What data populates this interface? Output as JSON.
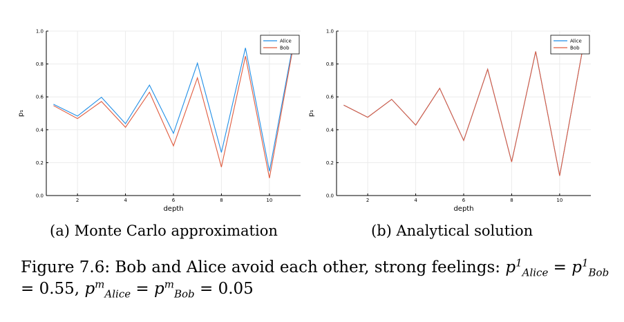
{
  "colors": {
    "alice": "#1f8ee6",
    "bob": "#e05b3e",
    "grid": "#ebebeb",
    "axis": "#000000"
  },
  "chart_data": [
    {
      "type": "line",
      "xlabel": "depth",
      "ylabel": "p₁",
      "xlim": [
        0.7,
        11.3
      ],
      "ylim": [
        0,
        1
      ],
      "xticks": [
        2,
        4,
        6,
        8,
        10
      ],
      "yticks": [
        0.0,
        0.2,
        0.4,
        0.6,
        0.8,
        1.0
      ],
      "ytick_labels": [
        "0.0",
        "0.2",
        "0.4",
        "0.6",
        "0.8",
        "1.0"
      ],
      "grid": true,
      "legend": "top-right",
      "x": [
        1,
        2,
        3,
        4,
        5,
        6,
        7,
        8,
        9,
        10,
        11
      ],
      "series": [
        {
          "name": "Alice",
          "values": [
            0.555,
            0.483,
            0.598,
            0.437,
            0.672,
            0.378,
            0.805,
            0.262,
            0.898,
            0.148,
            0.932
          ]
        },
        {
          "name": "Bob",
          "values": [
            0.547,
            0.468,
            0.572,
            0.415,
            0.628,
            0.302,
            0.716,
            0.173,
            0.848,
            0.106,
            0.912
          ]
        }
      ]
    },
    {
      "type": "line",
      "xlabel": "depth",
      "ylabel": "p₁",
      "xlim": [
        0.7,
        11.3
      ],
      "ylim": [
        0,
        1
      ],
      "xticks": [
        2,
        4,
        6,
        8,
        10
      ],
      "yticks": [
        0.0,
        0.2,
        0.4,
        0.6,
        0.8,
        1.0
      ],
      "ytick_labels": [
        "0.0",
        "0.2",
        "0.4",
        "0.6",
        "0.8",
        "1.0"
      ],
      "grid": true,
      "legend": "top-right",
      "x": [
        1,
        2,
        3,
        4,
        5,
        6,
        7,
        8,
        9,
        10,
        11
      ],
      "series": [
        {
          "name": "Alice",
          "values": [
            0.55,
            0.476,
            0.585,
            0.428,
            0.652,
            0.335,
            0.768,
            0.204,
            0.876,
            0.12,
            0.924
          ]
        },
        {
          "name": "Bob",
          "values": [
            0.55,
            0.476,
            0.585,
            0.428,
            0.652,
            0.335,
            0.768,
            0.204,
            0.876,
            0.12,
            0.924
          ]
        }
      ]
    }
  ],
  "subcaptions": {
    "a": "(a) Monte Carlo approximation",
    "b": "(b) Analytical solution"
  },
  "caption": {
    "prefix": "Figure 7.6: Bob and Alice avoid each other, strong feelings: ",
    "p": "p",
    "sup1": "1",
    "alice": "Alice",
    "bob": "Bob",
    "eq": " = ",
    "value1": "0.55, ",
    "supm": "m",
    "value2": "0.05"
  }
}
